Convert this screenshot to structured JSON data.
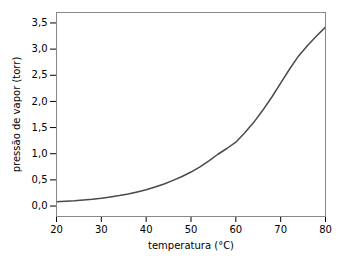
{
  "chart_data": {
    "type": "line",
    "xlabel": "temperatura (°C)",
    "ylabel": "pressão de vapor (torr)",
    "x": [
      20,
      22,
      24,
      26,
      28,
      30,
      32,
      34,
      36,
      38,
      40,
      42,
      44,
      46,
      48,
      50,
      52,
      54,
      56,
      58,
      60,
      62,
      64,
      66,
      68,
      70,
      72,
      74,
      76,
      78,
      80
    ],
    "values": [
      0.08,
      0.09,
      0.1,
      0.115,
      0.13,
      0.15,
      0.175,
      0.2,
      0.23,
      0.27,
      0.31,
      0.365,
      0.42,
      0.49,
      0.565,
      0.65,
      0.75,
      0.865,
      0.99,
      1.1,
      1.22,
      1.4,
      1.6,
      1.83,
      2.08,
      2.35,
      2.62,
      2.87,
      3.07,
      3.25,
      3.42
    ],
    "color": "#4a4a4a",
    "xlim": [
      20,
      80
    ],
    "ylim": [
      -0.2,
      3.7
    ],
    "xticks": [
      20,
      30,
      40,
      50,
      60,
      70,
      80
    ],
    "yticks": [
      {
        "value": 0.0,
        "label": "0,0"
      },
      {
        "value": 0.5,
        "label": "0,5"
      },
      {
        "value": 1.0,
        "label": "1,0"
      },
      {
        "value": 1.5,
        "label": "1,5"
      },
      {
        "value": 2.0,
        "label": "2,0"
      },
      {
        "value": 2.5,
        "label": "2,5"
      },
      {
        "value": 3.0,
        "label": "3,0"
      },
      {
        "value": 3.5,
        "label": "3,5"
      }
    ]
  }
}
